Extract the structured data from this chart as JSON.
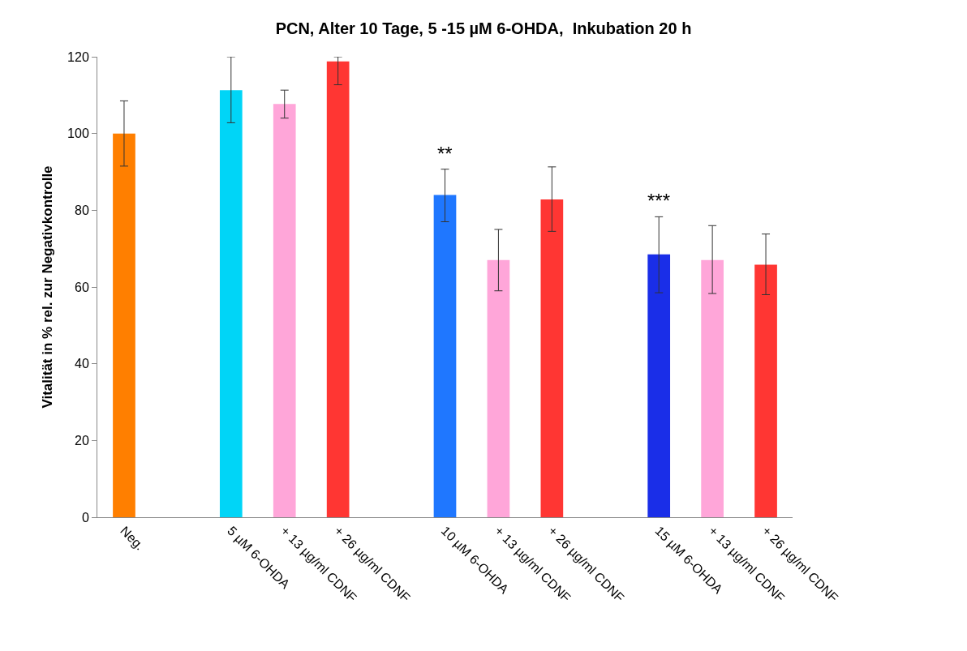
{
  "chart_data": {
    "type": "bar",
    "title": "PCN, Alter 10 Tage, 5 -15 µM 6-OHDA,  Inkubation 20 h",
    "ylabel": "Vitalität in % rel. zur Negativkontrolle",
    "categories": [
      "Neg.",
      null,
      "5 µM 6-OHDA",
      "+ 13 µg/ml CDNF",
      "+ 26 µg/ml CDNF",
      null,
      "10 µM 6-OHDA",
      "+ 13 µg/ml CDNF",
      "+ 26 µg/ml CDNF",
      null,
      "15 µM 6-OHDA",
      "+ 13 µg/ml CDNF",
      "+ 26 µg/ml CDNF"
    ],
    "values": [
      100,
      null,
      111.3,
      107.7,
      118.8,
      null,
      84,
      67,
      82.8,
      null,
      68.5,
      67,
      65.8
    ],
    "colors": [
      "#ff7f00",
      null,
      "#00d5f7",
      "#ffa6d9",
      "#ff3633",
      null,
      "#1f77ff",
      "#ffa6d9",
      "#ff3633",
      null,
      "#1a2ee8",
      "#ffa6d9",
      "#ff3633"
    ],
    "errors": [
      [
        91.5,
        108.5
      ],
      null,
      [
        102.8,
        120
      ],
      [
        104,
        111.3
      ],
      [
        112.7,
        120
      ],
      null,
      [
        77,
        90.7
      ],
      [
        59,
        75
      ],
      [
        74.5,
        91.3
      ],
      null,
      [
        58.5,
        78.3
      ],
      [
        58.3,
        76
      ],
      [
        58,
        73.8
      ]
    ],
    "annotations": [
      {
        "text": "**",
        "x": "10 µM 6-OHDA",
        "y": 90.7
      },
      {
        "text": "***",
        "x": "15 µM 6-OHDA",
        "y": 78.3
      }
    ],
    "ylim": [
      0,
      120
    ],
    "yticks": [
      0,
      20,
      40,
      60,
      80,
      100,
      120
    ],
    "grid": false
  }
}
